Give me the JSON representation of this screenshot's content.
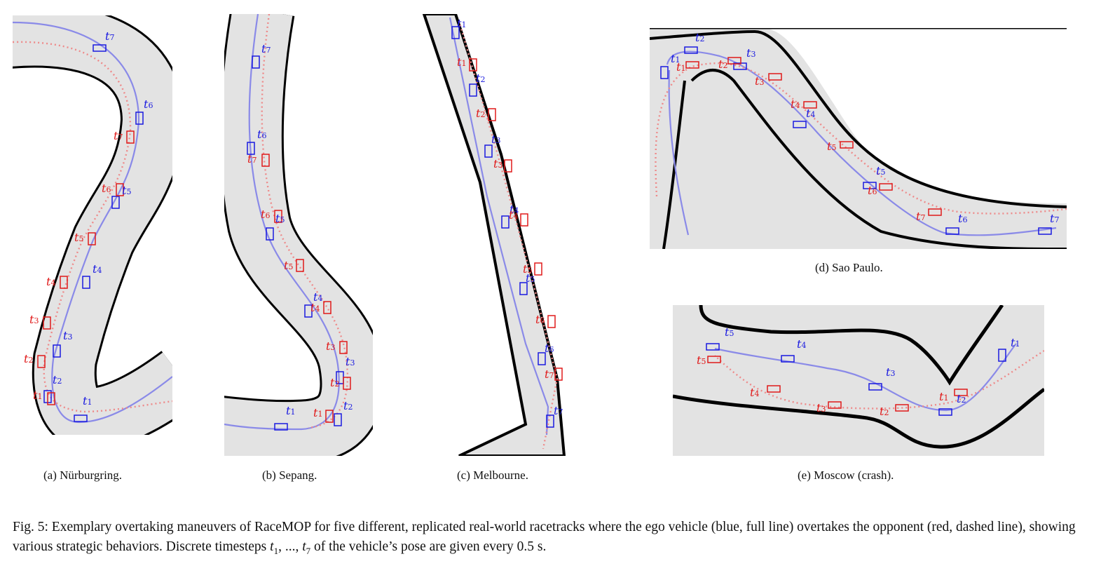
{
  "panels": [
    {
      "id": "a",
      "caption": "(a) Nürburgring."
    },
    {
      "id": "b",
      "caption": "(b) Sepang."
    },
    {
      "id": "c",
      "caption": "(c) Melbourne."
    },
    {
      "id": "d",
      "caption": "(d) Sao Paulo."
    },
    {
      "id": "e",
      "caption": "(e) Moscow (crash)."
    }
  ],
  "timestep_label": "t",
  "timesteps": [
    "1",
    "2",
    "3",
    "4",
    "5",
    "6",
    "7"
  ],
  "colors": {
    "ego": "#1a1ae0",
    "ego_line": "#8a8ae8",
    "opponent": "#e01a1a",
    "opponent_line": "#ee8a8a",
    "track": "#e3e3e3",
    "border": "#000000"
  },
  "figure_caption": {
    "prefix": "Fig. 5: Exemplary overtaking maneuvers of RaceMOP for five different, replicated real-world racetracks where the ego vehicle (blue, full line) overtakes the opponent (red, dashed line), showing various strategic behaviors. Discrete timesteps ",
    "math_start": "t",
    "math_start_sub": "1",
    "math_sep": ", ..., ",
    "math_end": "t",
    "math_end_sub": "7",
    "suffix": " of the vehicle’s pose are given every 0.5 s."
  }
}
